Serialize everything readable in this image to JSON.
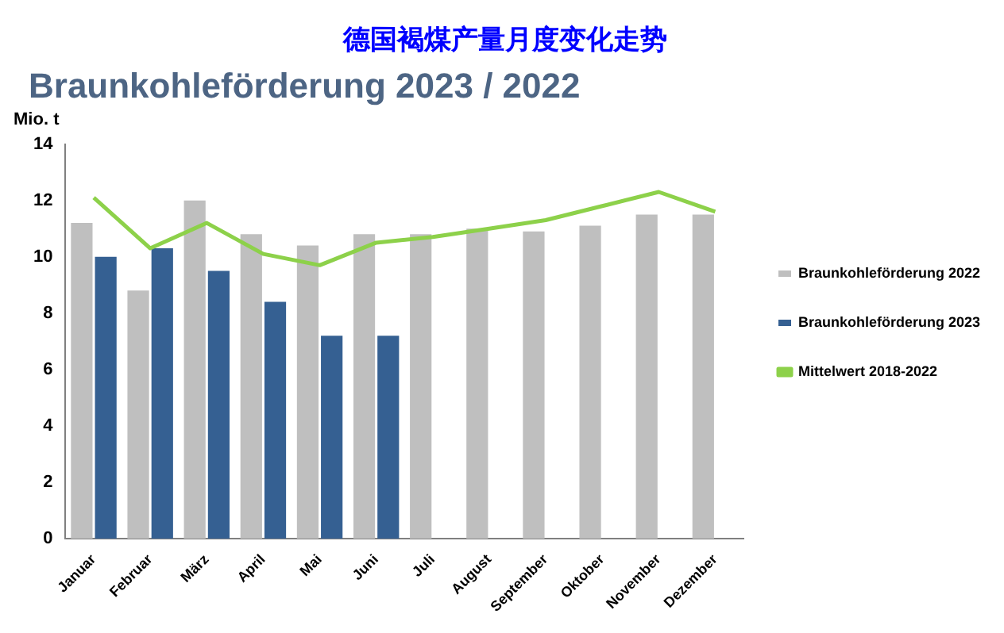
{
  "chart_data": {
    "type": "bar",
    "title": "德国褐煤产量月度变化走势",
    "subtitle": "Braunkohleförderung 2023 / 2022",
    "ylabel": "Mio. t",
    "categories": [
      "Januar",
      "Februar",
      "März",
      "April",
      "Mai",
      "Juni",
      "Juli",
      "August",
      "September",
      "Oktober",
      "November",
      "Dezember"
    ],
    "series": [
      {
        "name": "Braunkohleförderung 2022",
        "color": "#bfbfbf",
        "values": [
          11.2,
          8.8,
          12.0,
          10.8,
          10.4,
          10.8,
          10.8,
          11.0,
          10.9,
          11.1,
          11.5,
          11.5
        ]
      },
      {
        "name": "Braunkohleförderung 2023",
        "color": "#356092",
        "values": [
          10.0,
          10.3,
          9.5,
          8.4,
          7.2,
          7.2,
          null,
          null,
          null,
          null,
          null,
          null
        ]
      },
      {
        "name": "Mittelwert 2018-2022",
        "type": "line",
        "color": "#8dd14a",
        "values": [
          12.1,
          10.3,
          11.2,
          10.1,
          9.7,
          10.5,
          10.7,
          11.0,
          11.3,
          11.8,
          12.3,
          11.6
        ]
      }
    ],
    "ylim": [
      0,
      14
    ],
    "yticks": [
      0,
      2,
      4,
      6,
      8,
      10,
      12,
      14
    ],
    "grid": false,
    "legend": "right",
    "marker": "none",
    "line_style": "solid"
  }
}
